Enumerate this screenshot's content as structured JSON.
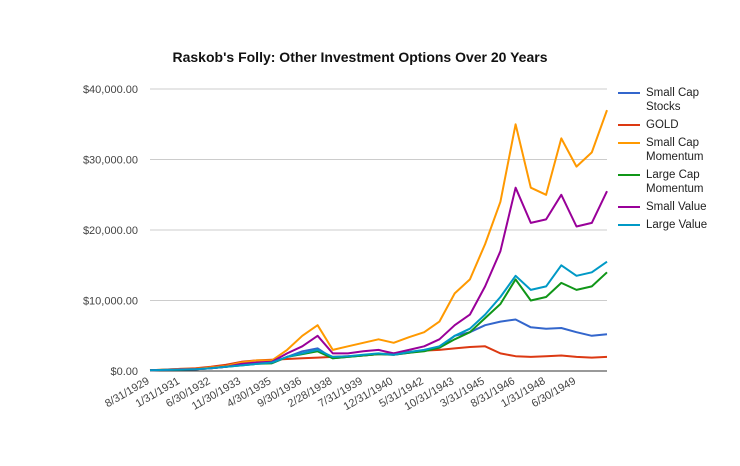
{
  "chart_data": {
    "type": "line",
    "title": "Raskob's Folly: Other Investment Options Over 20 Years",
    "categories": [
      "8/31/1929",
      null,
      "1/31/1931",
      null,
      "6/30/1932",
      null,
      "11/30/1933",
      null,
      "4/30/1935",
      null,
      "9/30/1936",
      null,
      "2/28/1938",
      null,
      "7/31/1939",
      null,
      "12/31/1940",
      null,
      "5/31/1942",
      null,
      "10/31/1943",
      null,
      "3/31/1945",
      null,
      "8/31/1946",
      null,
      "1/31/1948",
      null,
      "6/30/1949",
      null,
      null
    ],
    "ylim": [
      0,
      40000
    ],
    "yticks": [
      {
        "value": 0,
        "label": "$0.00"
      },
      {
        "value": 10000,
        "label": "$10,000.00"
      },
      {
        "value": 20000,
        "label": "$20,000.00"
      },
      {
        "value": 30000,
        "label": "$30,000.00"
      },
      {
        "value": 40000,
        "label": "$40,000.00"
      }
    ],
    "grid": true,
    "series": [
      {
        "name": "Small Cap Stocks",
        "color": "#3366cc",
        "values": [
          100,
          150,
          250,
          250,
          400,
          600,
          900,
          1100,
          1100,
          2000,
          2800,
          3200,
          1800,
          2000,
          2200,
          2400,
          2300,
          2600,
          2900,
          3300,
          5000,
          5500,
          6500,
          7000,
          7300,
          6200,
          6000,
          6100,
          5500,
          5000,
          5200
        ]
      },
      {
        "name": "GOLD",
        "color": "#dc3912",
        "values": [
          100,
          200,
          300,
          400,
          600,
          900,
          1300,
          1500,
          1600,
          1700,
          1800,
          1900,
          2000,
          2100,
          2200,
          2400,
          2500,
          2700,
          2900,
          3000,
          3200,
          3400,
          3500,
          2500,
          2100,
          2000,
          2100,
          2200,
          2000,
          1900,
          2000
        ]
      },
      {
        "name": "Small Cap Momentum",
        "color": "#ff9900",
        "values": [
          100,
          200,
          300,
          300,
          500,
          700,
          1200,
          1500,
          1500,
          3000,
          5000,
          6500,
          3000,
          3500,
          4000,
          4500,
          4000,
          4800,
          5500,
          7000,
          11000,
          13000,
          18000,
          24000,
          35000,
          26000,
          25000,
          33000,
          29000,
          31000,
          37000
        ]
      },
      {
        "name": "Large Cap Momentum",
        "color": "#109618",
        "values": [
          100,
          150,
          200,
          250,
          400,
          600,
          800,
          1000,
          1100,
          2000,
          2400,
          2800,
          1800,
          2000,
          2200,
          2400,
          2300,
          2600,
          2800,
          3300,
          4500,
          5500,
          7500,
          9500,
          13000,
          10000,
          10500,
          12500,
          11500,
          12000,
          14000
        ]
      },
      {
        "name": "Small Value",
        "color": "#990099",
        "values": [
          100,
          150,
          250,
          250,
          400,
          600,
          1000,
          1200,
          1300,
          2500,
          3500,
          5000,
          2500,
          2500,
          2800,
          3000,
          2500,
          3000,
          3500,
          4500,
          6500,
          8000,
          12000,
          17000,
          26000,
          21000,
          21500,
          25000,
          20500,
          21000,
          25500
        ]
      },
      {
        "name": "Large Value",
        "color": "#0099c6",
        "values": [
          100,
          150,
          200,
          250,
          400,
          600,
          800,
          1000,
          1200,
          2000,
          2500,
          3000,
          2000,
          2100,
          2300,
          2500,
          2300,
          2700,
          3000,
          3500,
          5000,
          6000,
          8000,
          10500,
          13500,
          11500,
          12000,
          15000,
          13500,
          14000,
          15500
        ]
      }
    ]
  }
}
